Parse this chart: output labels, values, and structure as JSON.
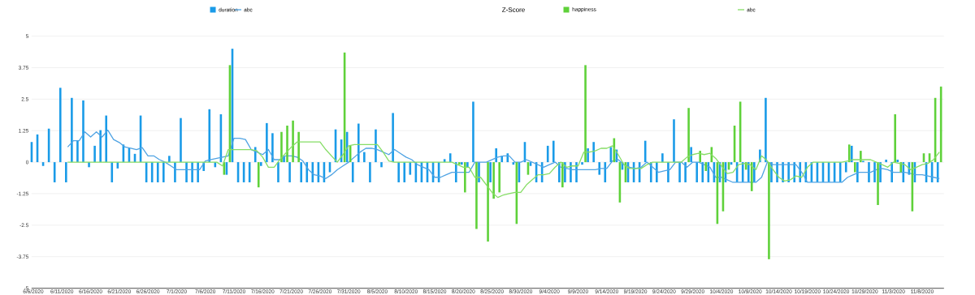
{
  "chart_data": {
    "type": "bar",
    "title": "Z-Score",
    "categories": [
      "6/6/2020",
      null,
      null,
      null,
      null,
      "6/11/2020",
      null,
      null,
      null,
      null,
      "6/16/2020",
      null,
      null,
      null,
      null,
      "6/21/2020",
      null,
      null,
      null,
      null,
      "6/26/2020",
      null,
      null,
      null,
      null,
      "7/1/2020",
      null,
      null,
      null,
      null,
      "7/6/2020",
      null,
      null,
      null,
      null,
      "7/11/2020",
      null,
      null,
      null,
      null,
      "7/16/2020",
      null,
      null,
      null,
      null,
      "7/21/2020",
      null,
      null,
      null,
      null,
      "7/26/2020",
      null,
      null,
      null,
      null,
      "7/31/2020",
      null,
      null,
      null,
      null,
      "8/5/2020",
      null,
      null,
      null,
      null,
      "8/10/2020",
      null,
      null,
      null,
      null,
      "8/15/2020",
      null,
      null,
      null,
      null,
      "8/20/2020",
      null,
      null,
      null,
      null,
      "8/25/2020",
      null,
      null,
      null,
      null,
      "8/30/2020",
      null,
      null,
      null,
      null,
      "9/4/2020",
      null,
      null,
      null,
      null,
      "9/9/2020",
      null,
      null,
      null,
      null,
      "9/14/2020",
      null,
      null,
      null,
      null,
      "9/19/2020",
      null,
      null,
      null,
      null,
      "9/24/2020",
      null,
      null,
      null,
      null,
      "9/29/2020",
      null,
      null,
      null,
      null,
      "10/4/2020",
      null,
      null,
      null,
      null,
      "10/9/2020",
      null,
      null,
      null,
      null,
      "10/14/2020",
      null,
      null,
      null,
      null,
      "10/19/2020",
      null,
      null,
      null,
      null,
      "10/24/2020",
      null,
      null,
      null,
      null,
      "10/29/2020",
      null,
      null,
      null,
      null,
      "11/3/2020",
      null,
      null,
      null,
      null,
      "11/8/2020",
      null,
      null,
      null
    ],
    "series": [
      {
        "name": "duration",
        "type": "bar",
        "color": "#1a9be8",
        "values": [
          0.8,
          1.1,
          -0.15,
          1.33,
          -0.8,
          2.95,
          -0.8,
          2.55,
          0.85,
          2.45,
          -0.2,
          0.65,
          1.27,
          1.85,
          -0.8,
          -0.25,
          0.7,
          0.55,
          0.33,
          1.85,
          -0.8,
          -0.8,
          -0.8,
          -0.8,
          0.25,
          -0.8,
          1.75,
          -0.8,
          -0.8,
          -0.8,
          -0.35,
          2.1,
          -0.2,
          1.9,
          -0.5,
          4.5,
          -0.8,
          -0.8,
          -0.8,
          0.6,
          -0.15,
          1.55,
          1.15,
          -0.8,
          0.25,
          -0.8,
          0,
          -0.8,
          -0.8,
          -0.8,
          -0.8,
          -0.8,
          -0.4,
          1.3,
          0.9,
          1.2,
          -0.8,
          1.53,
          0.4,
          -0.8,
          1.3,
          -0.2,
          0,
          1.95,
          -0.8,
          -0.8,
          -0.5,
          -0.8,
          -0.8,
          -0.8,
          -0.8,
          -0.8,
          0.12,
          0.35,
          -0.8,
          -0.1,
          -0.2,
          2.4,
          -0.8,
          null,
          -0.8,
          0.55,
          0.25,
          0.35,
          -0.1,
          -0.8,
          0.8,
          -0.15,
          -0.8,
          -0.8,
          0.65,
          0.85,
          -0.8,
          -0.8,
          -0.8,
          -0.8,
          -0.1,
          0.55,
          0.8,
          -0.5,
          -0.8,
          0.6,
          0.5,
          -0.3,
          -0.8,
          -0.8,
          -0.8,
          0.85,
          -0.8,
          -0.8,
          0.35,
          -0.8,
          1.7,
          -0.8,
          -0.8,
          0.6,
          -0.8,
          -0.8,
          -0.8,
          -0.8,
          -0.8,
          -0.8,
          -0.1,
          -0.8,
          -0.8,
          -0.8,
          -0.8,
          0.5,
          2.55,
          -0.8,
          -0.8,
          -0.8,
          -0.8,
          -0.8,
          -0.8,
          -0.8,
          -0.8,
          -0.8,
          -0.8,
          -0.8,
          -0.8,
          -0.8,
          -0.4,
          0.65,
          -0.8,
          0.05,
          -0.8,
          -0.8,
          -0.8,
          0.1,
          -0.8,
          0.1,
          -0.8,
          -0.5,
          -0.8,
          null,
          -0.8,
          -0.8,
          -0.8
        ]
      },
      {
        "name": "abc",
        "type": "line",
        "color": "#4fa3e3",
        "values": [
          null,
          null,
          null,
          null,
          null,
          null,
          0.6,
          0.85,
          0.85,
          1.2,
          1.0,
          1.2,
          1.0,
          1.27,
          0.9,
          0.78,
          0.6,
          0.55,
          0.5,
          0.58,
          0.25,
          0.25,
          0.1,
          0,
          -0.15,
          -0.3,
          -0.3,
          -0.3,
          -0.3,
          -0.3,
          0.05,
          0.1,
          0.15,
          0.2,
          0.25,
          0.95,
          0.95,
          0.9,
          0.5,
          0.4,
          0.3,
          0.5,
          0.1,
          0.1,
          0.25,
          0.25,
          0.2,
          0.05,
          -0.3,
          -0.5,
          -0.55,
          -0.65,
          -0.5,
          -0.3,
          -0.15,
          0,
          0.2,
          0.4,
          0.55,
          0.55,
          0.5,
          0.4,
          0.3,
          0.5,
          0.35,
          0.2,
          0.1,
          -0.1,
          -0.2,
          -0.3,
          -0.6,
          -0.6,
          -0.5,
          -0.4,
          -0.4,
          -0.4,
          -0.4,
          0,
          0,
          0,
          0.1,
          0.2,
          0.25,
          0.25,
          0,
          0,
          0.1,
          0,
          -0.1,
          -0.2,
          -0.1,
          0,
          -0.2,
          -0.25,
          -0.3,
          -0.3,
          -0.3,
          -0.3,
          -0.3,
          -0.25,
          -0.25,
          0.05,
          0.1,
          -0.1,
          -0.2,
          -0.25,
          -0.2,
          0,
          -0.2,
          -0.4,
          -0.35,
          -0.3,
          0,
          0,
          -0.2,
          0,
          0,
          -0.1,
          -0.2,
          -0.6,
          -0.6,
          -0.7,
          -0.8,
          -0.8,
          -0.8,
          -0.8,
          -0.8,
          -0.6,
          0,
          -0.1,
          -0.1,
          -0.1,
          -0.1,
          -0.1,
          -0.4,
          -0.8,
          -0.8,
          -0.8,
          -0.8,
          -0.8,
          -0.8,
          -0.8,
          -0.6,
          -0.5,
          -0.4,
          -0.4,
          -0.4,
          -0.3,
          -0.25,
          -0.3,
          -0.4,
          -0.4,
          -0.4,
          -0.45,
          -0.5,
          -0.5,
          -0.55,
          -0.6,
          -0.65
        ]
      },
      {
        "name": "happiness",
        "type": "bar",
        "color": "#5fd13a",
        "values": [
          0,
          0,
          0,
          0,
          0,
          0,
          0,
          0,
          0,
          0,
          0,
          0,
          0,
          0,
          0,
          0,
          0,
          0,
          0,
          0,
          0,
          0,
          0,
          0,
          0,
          0,
          0,
          0,
          0,
          0,
          0,
          0,
          0,
          -0.5,
          3.85,
          0,
          0,
          0,
          0,
          -1.0,
          0,
          0,
          0,
          1.2,
          1.45,
          1.65,
          1.2,
          0,
          0,
          0,
          0,
          0,
          0,
          0,
          4.35,
          0.65,
          0,
          0,
          0,
          0,
          0,
          0,
          0,
          0,
          0,
          0,
          0,
          0,
          0,
          0,
          0,
          0,
          0,
          0,
          -0.1,
          -1.2,
          0,
          -2.65,
          0,
          -3.15,
          -1.45,
          -1.2,
          0,
          0,
          -2.45,
          0,
          -0.5,
          0,
          0,
          0,
          0,
          0,
          -1.0,
          0,
          0,
          0,
          3.85,
          0,
          0,
          0,
          0,
          0.95,
          -1.6,
          -0.8,
          0,
          0,
          0,
          0,
          0,
          0,
          0,
          0,
          0,
          0,
          2.15,
          0,
          0.45,
          -0.35,
          0.6,
          -2.45,
          -1.95,
          -0.3,
          1.45,
          2.4,
          -0.3,
          -1.15,
          0,
          0,
          -3.85,
          0,
          0,
          0,
          0,
          0,
          0,
          0,
          0,
          0,
          0,
          0,
          0,
          0,
          0.7,
          -0.4,
          0.45,
          0,
          0,
          -1.7,
          0,
          0,
          1.9,
          -0.4,
          0,
          -1.95,
          0,
          0.35,
          0.35,
          2.55,
          3.0
        ]
      },
      {
        "name": "abc",
        "type": "line",
        "color": "#86dd66",
        "values": [
          null,
          null,
          null,
          null,
          null,
          null,
          0,
          0,
          0,
          0,
          0,
          0,
          0,
          0,
          0,
          0,
          0,
          0,
          0,
          0,
          0,
          0,
          0,
          0,
          0,
          0,
          0,
          0,
          0,
          0,
          0,
          0,
          0,
          -0.15,
          0.5,
          0.5,
          0.5,
          0.5,
          0.5,
          0.45,
          0.2,
          -0.2,
          -0.2,
          0.1,
          0.35,
          0.6,
          0.8,
          0.8,
          0.8,
          0.8,
          0.8,
          0.5,
          0.25,
          0,
          0.3,
          0.65,
          0.7,
          0.7,
          0.7,
          0.7,
          0.7,
          0.4,
          0.05,
          0,
          0,
          0,
          0,
          0,
          0,
          0,
          0,
          0,
          0,
          0,
          -0.1,
          -0.2,
          -0.2,
          -0.6,
          -0.6,
          -0.9,
          -1.2,
          -1.4,
          -1.3,
          -1.25,
          -1.2,
          -1.2,
          -0.9,
          -0.7,
          -0.5,
          -0.5,
          -0.45,
          -0.2,
          0,
          -0.2,
          -0.15,
          -0.15,
          0.4,
          0.4,
          0.45,
          0.55,
          0.55,
          0.65,
          0.3,
          -0.1,
          -0.25,
          -0.25,
          -0.25,
          -0.1,
          0,
          0,
          0,
          0,
          0,
          0,
          0.2,
          0.3,
          0.35,
          0.3,
          0.35,
          0.15,
          -0.15,
          -0.45,
          -0.4,
          -0.1,
          -0.05,
          -0.1,
          -0.3,
          0.25,
          0.05,
          -0.3,
          -0.6,
          -0.75,
          -0.7,
          -0.55,
          -0.6,
          -0.2,
          0,
          0,
          0,
          0,
          0,
          0,
          0.05,
          0.1,
          0.1,
          0.1,
          0.1,
          0,
          -0.1,
          -0.2,
          0,
          -0.05,
          -0.1,
          -0.3,
          -0.2,
          -0.1,
          -0.05,
          0.1,
          0.4
        ]
      }
    ],
    "ylim": [
      -5,
      5
    ],
    "yticks": [
      -5,
      -3.75,
      -2.5,
      -1.25,
      0,
      1.25,
      2.5,
      3.75,
      5
    ],
    "grid": "y",
    "legend": "top"
  }
}
